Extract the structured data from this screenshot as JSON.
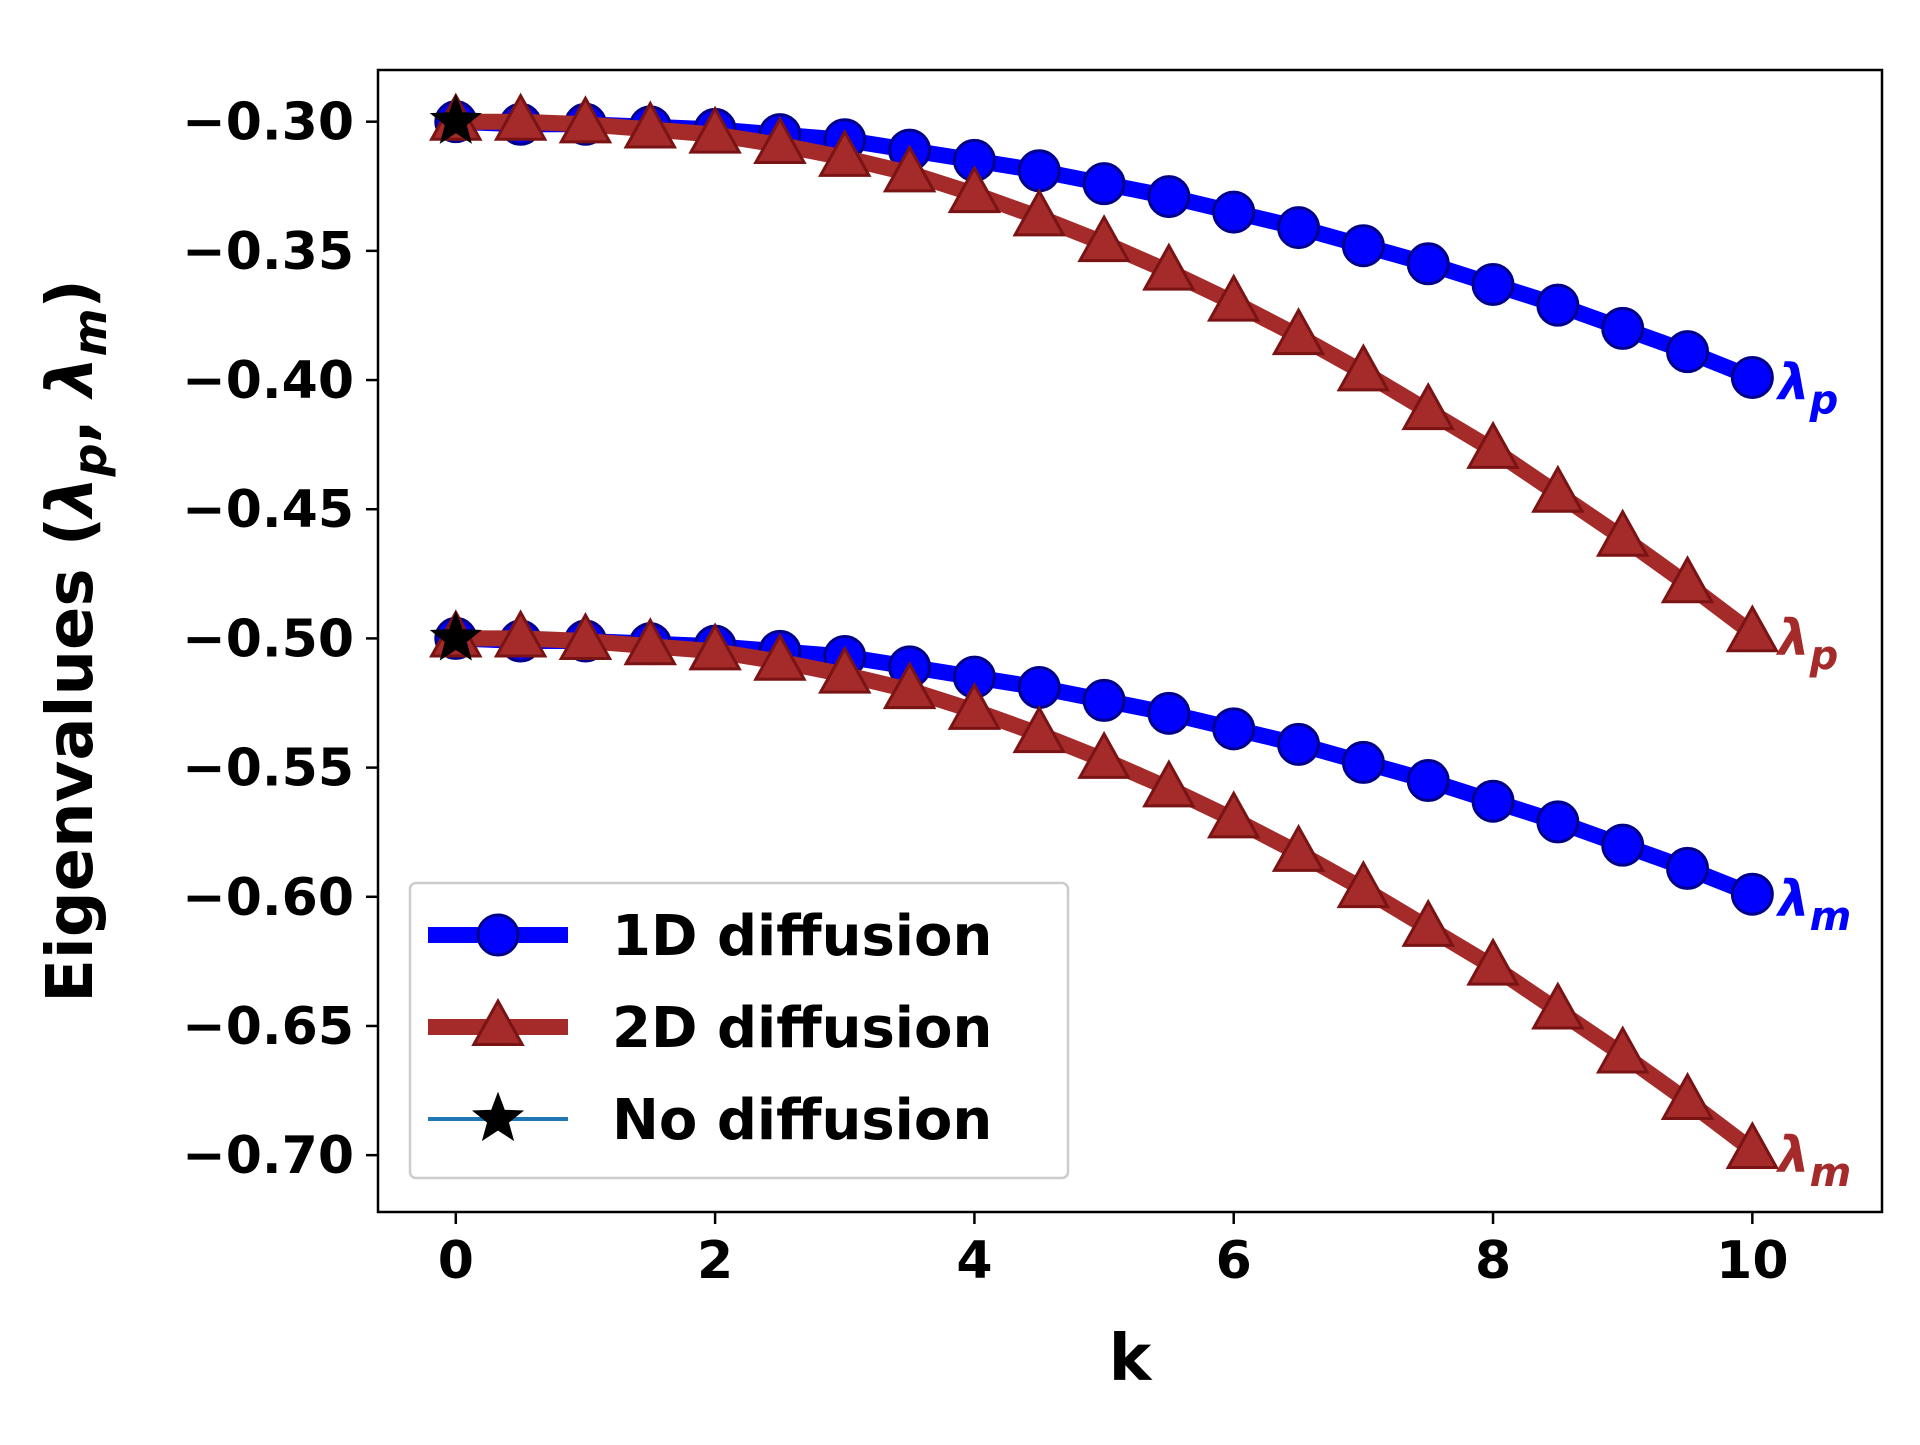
{
  "chart_data": {
    "type": "line",
    "xlabel": "k",
    "ylabel": "Eigenvalues (λp, λm)",
    "ylabel_parts": {
      "main": "Eigenvalues (",
      "lp": "λ",
      "p": "p",
      "sep": ", ",
      "lm": "λ",
      "m": "m",
      "close": ")"
    },
    "xlim": [
      -0.6,
      11.0
    ],
    "ylim": [
      -0.722,
      -0.28
    ],
    "xticks": [
      0,
      2,
      4,
      6,
      8,
      10
    ],
    "xtick_labels": [
      "0",
      "2",
      "4",
      "6",
      "8",
      "10"
    ],
    "yticks": [
      -0.3,
      -0.35,
      -0.4,
      -0.45,
      -0.5,
      -0.55,
      -0.6,
      -0.65,
      -0.7
    ],
    "ytick_labels": [
      "−0.30",
      "−0.35",
      "−0.40",
      "−0.45",
      "−0.50",
      "−0.55",
      "−0.60",
      "−0.65",
      "−0.70"
    ],
    "grid": false,
    "legend_position": "lower-left",
    "x": [
      0,
      0.5,
      1,
      1.5,
      2,
      2.5,
      3,
      3.5,
      4,
      4.5,
      5,
      5.5,
      6,
      6.5,
      7,
      7.5,
      8,
      8.5,
      9,
      9.5,
      10
    ],
    "series": [
      {
        "name": "1D diffusion",
        "group": "lambda_p",
        "color": "#0000ff",
        "marker": "circle",
        "values": [
          -0.3,
          -0.301,
          -0.301,
          -0.302,
          -0.303,
          -0.305,
          -0.307,
          -0.311,
          -0.315,
          -0.319,
          -0.324,
          -0.329,
          -0.335,
          -0.341,
          -0.348,
          -0.355,
          -0.363,
          -0.371,
          -0.38,
          -0.389,
          -0.399
        ]
      },
      {
        "name": "2D diffusion",
        "group": "lambda_p",
        "color": "#a52a2a",
        "marker": "triangle",
        "values": [
          -0.3,
          -0.3,
          -0.301,
          -0.303,
          -0.305,
          -0.309,
          -0.314,
          -0.32,
          -0.328,
          -0.337,
          -0.347,
          -0.358,
          -0.37,
          -0.383,
          -0.397,
          -0.412,
          -0.427,
          -0.444,
          -0.461,
          -0.479,
          -0.498
        ]
      },
      {
        "name": "1D diffusion",
        "group": "lambda_m",
        "color": "#0000ff",
        "marker": "circle",
        "values": [
          -0.5,
          -0.501,
          -0.501,
          -0.502,
          -0.503,
          -0.505,
          -0.507,
          -0.511,
          -0.515,
          -0.519,
          -0.524,
          -0.529,
          -0.535,
          -0.541,
          -0.548,
          -0.555,
          -0.563,
          -0.571,
          -0.58,
          -0.589,
          -0.599
        ]
      },
      {
        "name": "2D diffusion",
        "group": "lambda_m",
        "color": "#a52a2a",
        "marker": "triangle",
        "values": [
          -0.5,
          -0.5,
          -0.501,
          -0.503,
          -0.505,
          -0.509,
          -0.514,
          -0.52,
          -0.528,
          -0.537,
          -0.547,
          -0.558,
          -0.57,
          -0.583,
          -0.597,
          -0.612,
          -0.627,
          -0.644,
          -0.661,
          -0.679,
          -0.698
        ]
      },
      {
        "name": "No diffusion",
        "color": "#1f77b4",
        "marker": "star",
        "points": [
          {
            "x": 0,
            "y": -0.3
          },
          {
            "x": 0,
            "y": -0.5
          }
        ]
      }
    ],
    "legend": [
      {
        "label": "1D diffusion",
        "color": "#0000ff",
        "marker": "circle"
      },
      {
        "label": "2D diffusion",
        "color": "#a52a2a",
        "marker": "triangle"
      },
      {
        "label": "No diffusion",
        "color": "#1f77b4",
        "marker": "star"
      }
    ],
    "annotations": [
      {
        "text": "λ",
        "sub": "p",
        "color": "#0000ff",
        "series_index": 0
      },
      {
        "text": "λ",
        "sub": "p",
        "color": "#a52a2a",
        "series_index": 1
      },
      {
        "text": "λ",
        "sub": "m",
        "color": "#0000ff",
        "series_index": 2
      },
      {
        "text": "λ",
        "sub": "m",
        "color": "#a52a2a",
        "series_index": 3
      }
    ]
  }
}
